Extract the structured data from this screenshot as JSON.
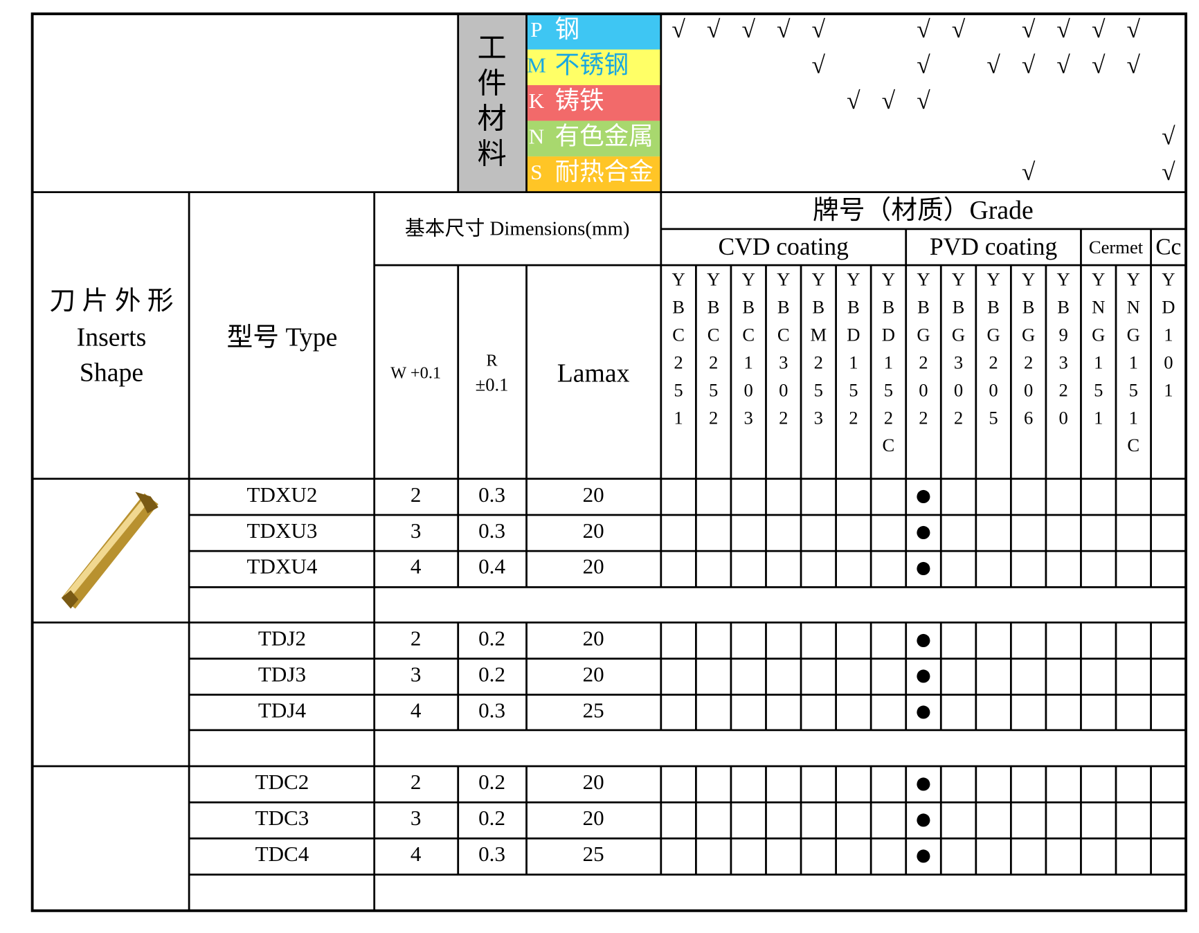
{
  "materials": {
    "title": "工件材料",
    "rows": [
      {
        "code": "P",
        "name": "钢",
        "checks": [
          "√",
          "√",
          "√",
          "√",
          "√",
          null,
          null,
          "√",
          "√",
          null,
          "√",
          "√",
          "√",
          "√",
          null
        ]
      },
      {
        "code": "M",
        "name": "不锈钢",
        "checks": [
          null,
          null,
          null,
          null,
          "√",
          null,
          null,
          "√",
          null,
          "√",
          "√",
          "√",
          "√",
          "√",
          null
        ]
      },
      {
        "code": "K",
        "name": "铸铁",
        "checks": [
          null,
          null,
          null,
          null,
          null,
          "√",
          "√",
          "√",
          null,
          null,
          null,
          null,
          null,
          null,
          null
        ]
      },
      {
        "code": "N",
        "name": "有色金属",
        "checks": [
          null,
          null,
          null,
          null,
          null,
          null,
          null,
          null,
          null,
          null,
          null,
          null,
          null,
          null,
          "√"
        ]
      },
      {
        "code": "S",
        "name": "耐热合金",
        "checks": [
          null,
          null,
          null,
          null,
          null,
          null,
          null,
          null,
          null,
          null,
          "√",
          null,
          null,
          null,
          "√"
        ]
      }
    ]
  },
  "header": {
    "shape": [
      "刀 片 外 形",
      "Inserts",
      "Shape"
    ],
    "type": "型号 Type",
    "dimensions": "基本尺寸 Dimensions(mm)",
    "w": "W +0.1",
    "r": [
      "R",
      "±0.1"
    ],
    "lamax": "Lamax",
    "grade": "牌号（材质）Grade",
    "groups": [
      "CVD coating",
      "PVD coating",
      "Cermet",
      "Cc"
    ]
  },
  "grades": [
    "YBC251",
    "YBC252",
    "YBC103",
    "YBC302",
    "YBM253",
    "YBD152",
    "YBD152C",
    "YBG202",
    "YBG302",
    "YBG205",
    "YBG206",
    "YB9320",
    "YNG151",
    "YNG151C",
    "YD101"
  ],
  "rows": [
    {
      "type": "TDXU2",
      "w": "2",
      "r": "0.3",
      "lamax": "20",
      "marks": [
        null,
        null,
        null,
        null,
        null,
        null,
        null,
        "●",
        null,
        null,
        null,
        null,
        null,
        null,
        null
      ]
    },
    {
      "type": "TDXU3",
      "w": "3",
      "r": "0.3",
      "lamax": "20",
      "marks": [
        null,
        null,
        null,
        null,
        null,
        null,
        null,
        "●",
        null,
        null,
        null,
        null,
        null,
        null,
        null
      ]
    },
    {
      "type": "TDXU4",
      "w": "4",
      "r": "0.4",
      "lamax": "20",
      "marks": [
        null,
        null,
        null,
        null,
        null,
        null,
        null,
        "●",
        null,
        null,
        null,
        null,
        null,
        null,
        null
      ]
    },
    {
      "type": "TDJ2",
      "w": "2",
      "r": "0.2",
      "lamax": "20",
      "marks": [
        null,
        null,
        null,
        null,
        null,
        null,
        null,
        "●",
        null,
        null,
        null,
        null,
        null,
        null,
        null
      ]
    },
    {
      "type": "TDJ3",
      "w": "3",
      "r": "0.2",
      "lamax": "20",
      "marks": [
        null,
        null,
        null,
        null,
        null,
        null,
        null,
        "●",
        null,
        null,
        null,
        null,
        null,
        null,
        null
      ]
    },
    {
      "type": "TDJ4",
      "w": "4",
      "r": "0.3",
      "lamax": "25",
      "marks": [
        null,
        null,
        null,
        null,
        null,
        null,
        null,
        "●",
        null,
        null,
        null,
        null,
        null,
        null,
        null
      ]
    },
    {
      "type": "TDC2",
      "w": "2",
      "r": "0.2",
      "lamax": "20",
      "marks": [
        null,
        null,
        null,
        null,
        null,
        null,
        null,
        "●",
        null,
        null,
        null,
        null,
        null,
        null,
        null
      ]
    },
    {
      "type": "TDC3",
      "w": "3",
      "r": "0.2",
      "lamax": "20",
      "marks": [
        null,
        null,
        null,
        null,
        null,
        null,
        null,
        "●",
        null,
        null,
        null,
        null,
        null,
        null,
        null
      ]
    },
    {
      "type": "TDC4",
      "w": "4",
      "r": "0.3",
      "lamax": "25",
      "marks": [
        null,
        null,
        null,
        null,
        null,
        null,
        null,
        "●",
        null,
        null,
        null,
        null,
        null,
        null,
        null
      ]
    }
  ]
}
